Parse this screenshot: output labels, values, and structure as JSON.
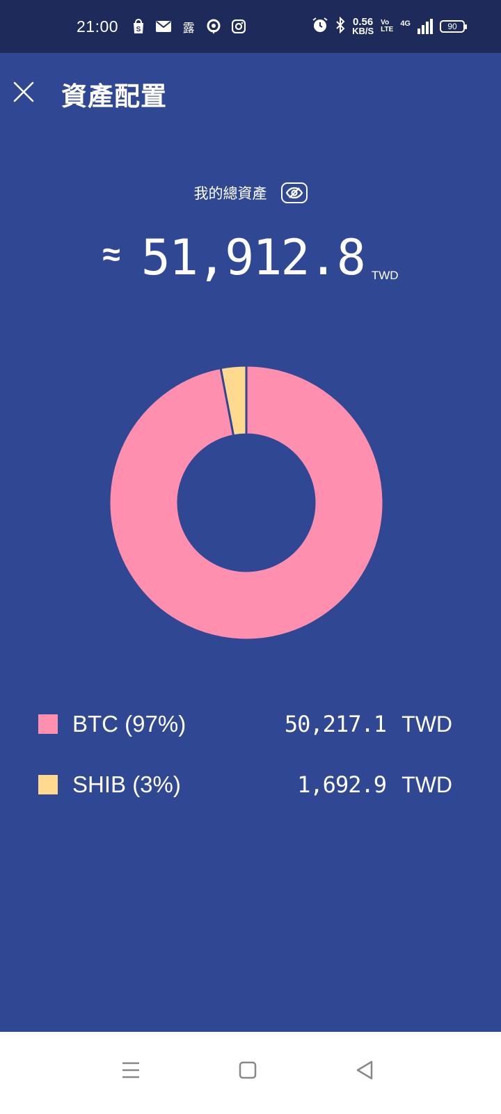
{
  "status_bar": {
    "time": "21:00",
    "notification_glyph": "露",
    "net_speed_value": "0.56",
    "net_speed_unit": "KB/S",
    "volte_top": "Vo",
    "volte_bottom": "LTE",
    "network_type": "4G",
    "battery": "90"
  },
  "app_bar": {
    "title": "資產配置"
  },
  "summary": {
    "label": "我的總資產",
    "approx_symbol": "≈",
    "total": "51,912.8",
    "unit": "TWD"
  },
  "chart_data": {
    "type": "pie",
    "categories": [
      "BTC",
      "SHIB"
    ],
    "values": [
      97,
      3
    ],
    "colors": [
      "#ff8fae",
      "#ffd98e"
    ]
  },
  "holdings": [
    {
      "label": "BTC (97%)",
      "value": "50,217.1",
      "unit": "TWD",
      "color": "#ff8fae"
    },
    {
      "label": "SHIB (3%)",
      "value": "1,692.9",
      "unit": "TWD",
      "color": "#ffd98e"
    }
  ],
  "colors": {
    "background": "#304793",
    "status_bar": "#1d2a5a"
  },
  "icons": {
    "close": "close-icon",
    "eye": "eye-off-icon",
    "nav_menu": "menu-icon",
    "nav_home": "home-icon",
    "nav_back": "back-icon"
  }
}
